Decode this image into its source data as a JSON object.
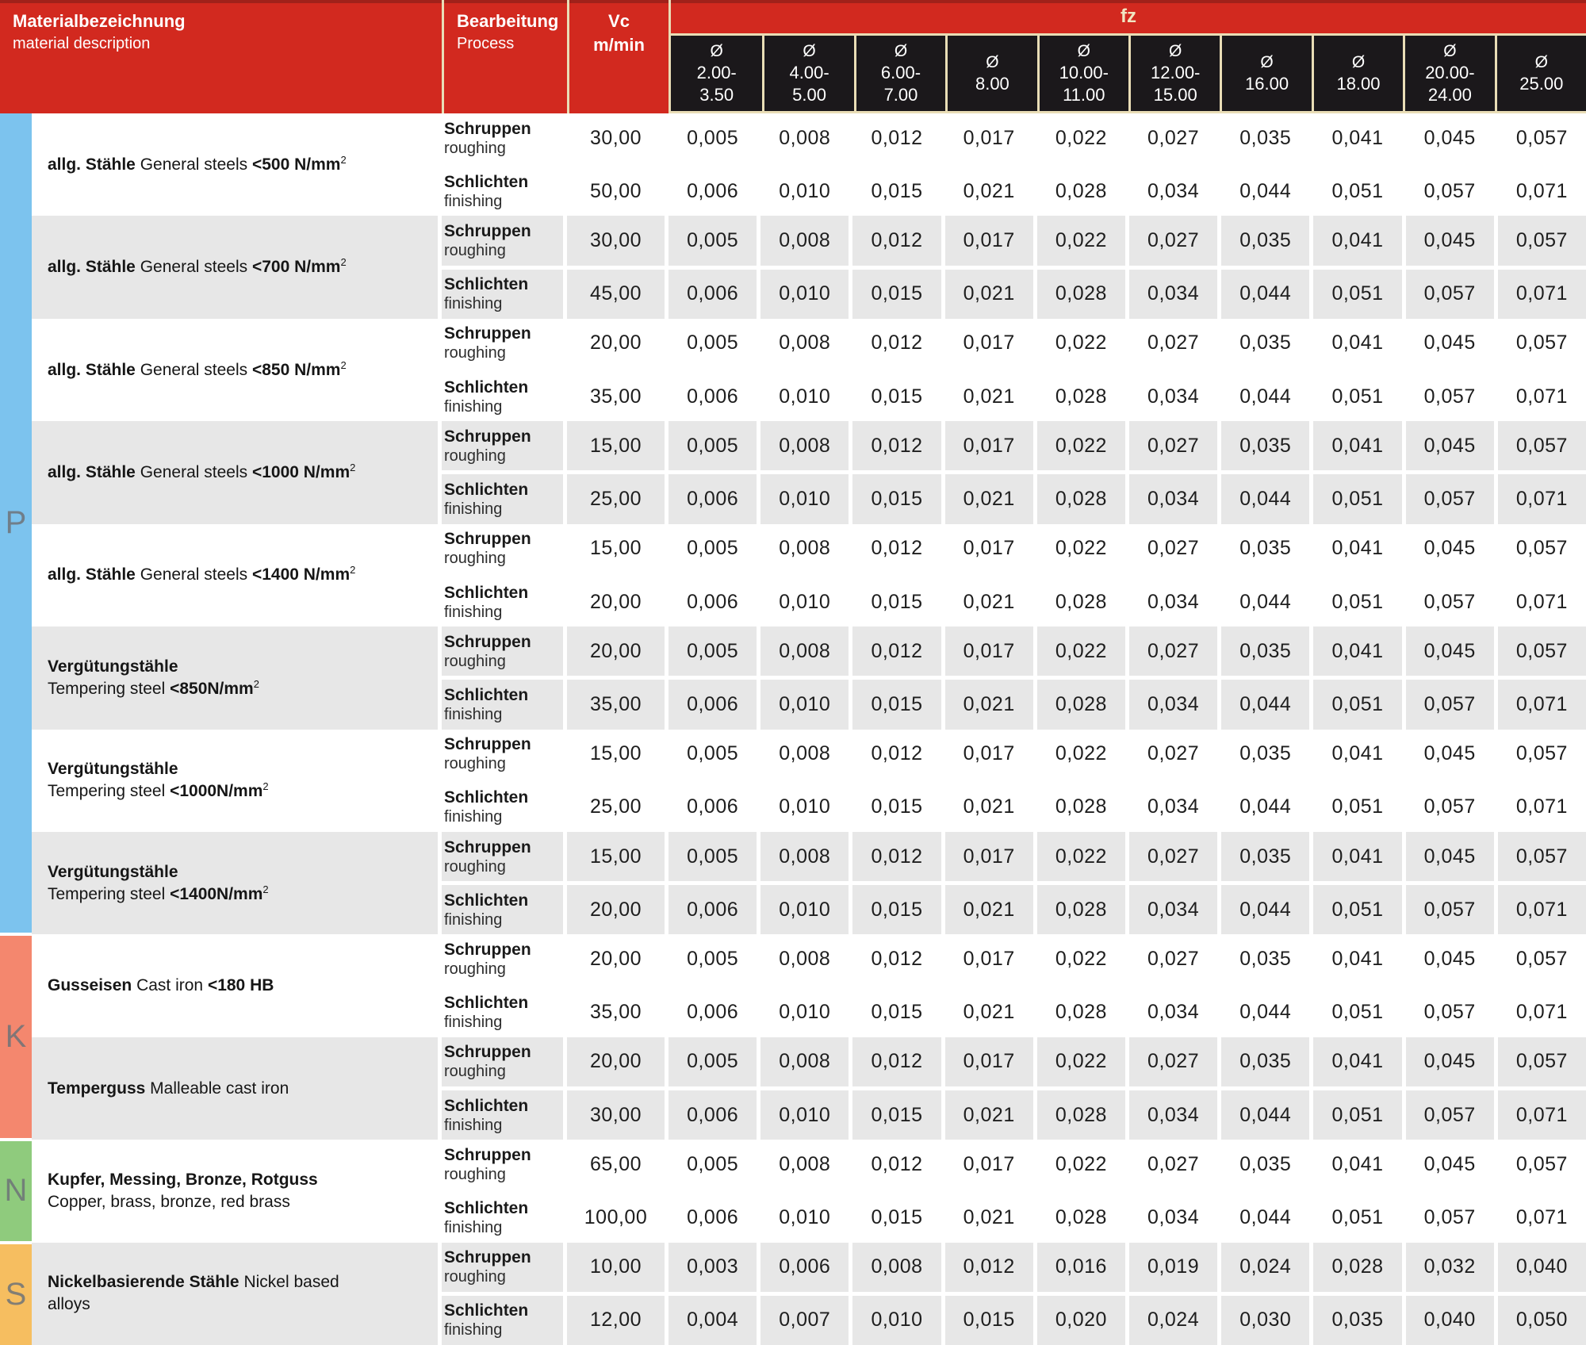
{
  "colors": {
    "header_red": "#d2291f",
    "header_red_dark": "#a0211a",
    "separator_cream": "#e9ddb6",
    "diameter_black": "#1b181b",
    "row_gray": "#e7e7e7",
    "group_p_blue": "#7cc3ee",
    "group_k_salmon": "#f4876e",
    "group_n_green": "#8fcb7d",
    "group_s_orange": "#f6be60",
    "group_letter_gray": "#6e7378"
  },
  "header": {
    "material_de": "Materialbezeichnung",
    "material_en": "material description",
    "process_de": "Bearbeitung",
    "process_en": "Process",
    "vc_line1": "Vc",
    "vc_line2": "m/min",
    "fz": "fz",
    "diameter_symbol": "Ø",
    "diameters": [
      "2.00-\n3.50",
      "4.00-\n5.00",
      "6.00-\n7.00",
      "8.00",
      "10.00-\n11.00",
      "12.00-\n15.00",
      "16.00",
      "18.00",
      "20.00-\n24.00",
      "25.00"
    ]
  },
  "process": {
    "rough_de": "Schruppen",
    "rough_en": "roughing",
    "finish_de": "Schlichten",
    "finish_en": "finishing"
  },
  "groups": [
    {
      "label": "P",
      "color": "#7cc3ee",
      "blocks": 8
    },
    {
      "label": "K",
      "color": "#f4876e",
      "blocks": 2
    },
    {
      "label": "N",
      "color": "#8fcb7d",
      "blocks": 1
    },
    {
      "label": "S",
      "color": "#f6be60",
      "blocks": 1
    }
  ],
  "blocks": [
    {
      "material": [
        [
          {
            "t": "allg. Stähle ",
            "b": true
          },
          {
            "t": "General steels ",
            "b": false
          },
          {
            "t": "<500 N/mm",
            "b": true,
            "sup": "2"
          }
        ]
      ],
      "vc": [
        "30,00",
        "50,00"
      ],
      "fz": [
        [
          "0,005",
          "0,008",
          "0,012",
          "0,017",
          "0,022",
          "0,027",
          "0,035",
          "0,041",
          "0,045",
          "0,057"
        ],
        [
          "0,006",
          "0,010",
          "0,015",
          "0,021",
          "0,028",
          "0,034",
          "0,044",
          "0,051",
          "0,057",
          "0,071"
        ]
      ]
    },
    {
      "material": [
        [
          {
            "t": "allg. Stähle ",
            "b": true
          },
          {
            "t": "General steels ",
            "b": false
          },
          {
            "t": "<700 N/mm",
            "b": true,
            "sup": "2"
          }
        ]
      ],
      "vc": [
        "30,00",
        "45,00"
      ],
      "fz": [
        [
          "0,005",
          "0,008",
          "0,012",
          "0,017",
          "0,022",
          "0,027",
          "0,035",
          "0,041",
          "0,045",
          "0,057"
        ],
        [
          "0,006",
          "0,010",
          "0,015",
          "0,021",
          "0,028",
          "0,034",
          "0,044",
          "0,051",
          "0,057",
          "0,071"
        ]
      ]
    },
    {
      "material": [
        [
          {
            "t": "allg. Stähle ",
            "b": true
          },
          {
            "t": "General steels ",
            "b": false
          },
          {
            "t": "<850 N/mm",
            "b": true,
            "sup": "2"
          }
        ]
      ],
      "vc": [
        "20,00",
        "35,00"
      ],
      "fz": [
        [
          "0,005",
          "0,008",
          "0,012",
          "0,017",
          "0,022",
          "0,027",
          "0,035",
          "0,041",
          "0,045",
          "0,057"
        ],
        [
          "0,006",
          "0,010",
          "0,015",
          "0,021",
          "0,028",
          "0,034",
          "0,044",
          "0,051",
          "0,057",
          "0,071"
        ]
      ]
    },
    {
      "material": [
        [
          {
            "t": "allg. Stähle ",
            "b": true
          },
          {
            "t": "General steels ",
            "b": false
          },
          {
            "t": "<1000 N/mm",
            "b": true,
            "sup": "2"
          }
        ]
      ],
      "vc": [
        "15,00",
        "25,00"
      ],
      "fz": [
        [
          "0,005",
          "0,008",
          "0,012",
          "0,017",
          "0,022",
          "0,027",
          "0,035",
          "0,041",
          "0,045",
          "0,057"
        ],
        [
          "0,006",
          "0,010",
          "0,015",
          "0,021",
          "0,028",
          "0,034",
          "0,044",
          "0,051",
          "0,057",
          "0,071"
        ]
      ]
    },
    {
      "material": [
        [
          {
            "t": "allg. Stähle ",
            "b": true
          },
          {
            "t": "General steels ",
            "b": false
          },
          {
            "t": "<1400 N/mm",
            "b": true,
            "sup": "2"
          }
        ]
      ],
      "vc": [
        "15,00",
        "20,00"
      ],
      "fz": [
        [
          "0,005",
          "0,008",
          "0,012",
          "0,017",
          "0,022",
          "0,027",
          "0,035",
          "0,041",
          "0,045",
          "0,057"
        ],
        [
          "0,006",
          "0,010",
          "0,015",
          "0,021",
          "0,028",
          "0,034",
          "0,044",
          "0,051",
          "0,057",
          "0,071"
        ]
      ]
    },
    {
      "material": [
        [
          {
            "t": "Vergütungstähle",
            "b": true
          }
        ],
        [
          {
            "t": "Tempering steel ",
            "b": false
          },
          {
            "t": "<850N/mm",
            "b": true,
            "sup": "2"
          }
        ]
      ],
      "vc": [
        "20,00",
        "35,00"
      ],
      "fz": [
        [
          "0,005",
          "0,008",
          "0,012",
          "0,017",
          "0,022",
          "0,027",
          "0,035",
          "0,041",
          "0,045",
          "0,057"
        ],
        [
          "0,006",
          "0,010",
          "0,015",
          "0,021",
          "0,028",
          "0,034",
          "0,044",
          "0,051",
          "0,057",
          "0,071"
        ]
      ]
    },
    {
      "material": [
        [
          {
            "t": "Vergütungstähle",
            "b": true
          }
        ],
        [
          {
            "t": "Tempering steel ",
            "b": false
          },
          {
            "t": "<1000N/mm",
            "b": true,
            "sup": "2"
          }
        ]
      ],
      "vc": [
        "15,00",
        "25,00"
      ],
      "fz": [
        [
          "0,005",
          "0,008",
          "0,012",
          "0,017",
          "0,022",
          "0,027",
          "0,035",
          "0,041",
          "0,045",
          "0,057"
        ],
        [
          "0,006",
          "0,010",
          "0,015",
          "0,021",
          "0,028",
          "0,034",
          "0,044",
          "0,051",
          "0,057",
          "0,071"
        ]
      ]
    },
    {
      "material": [
        [
          {
            "t": "Vergütungstähle",
            "b": true
          }
        ],
        [
          {
            "t": "Tempering steel ",
            "b": false
          },
          {
            "t": "<1400N/mm",
            "b": true,
            "sup": "2"
          }
        ]
      ],
      "vc": [
        "15,00",
        "20,00"
      ],
      "fz": [
        [
          "0,005",
          "0,008",
          "0,012",
          "0,017",
          "0,022",
          "0,027",
          "0,035",
          "0,041",
          "0,045",
          "0,057"
        ],
        [
          "0,006",
          "0,010",
          "0,015",
          "0,021",
          "0,028",
          "0,034",
          "0,044",
          "0,051",
          "0,057",
          "0,071"
        ]
      ]
    },
    {
      "material": [
        [
          {
            "t": "Gusseisen ",
            "b": true
          },
          {
            "t": "Cast iron ",
            "b": false
          },
          {
            "t": "<180 HB",
            "b": true
          }
        ]
      ],
      "vc": [
        "20,00",
        "35,00"
      ],
      "fz": [
        [
          "0,005",
          "0,008",
          "0,012",
          "0,017",
          "0,022",
          "0,027",
          "0,035",
          "0,041",
          "0,045",
          "0,057"
        ],
        [
          "0,006",
          "0,010",
          "0,015",
          "0,021",
          "0,028",
          "0,034",
          "0,044",
          "0,051",
          "0,057",
          "0,071"
        ]
      ]
    },
    {
      "material": [
        [
          {
            "t": "Temperguss ",
            "b": true
          },
          {
            "t": "Malleable cast iron",
            "b": false
          }
        ]
      ],
      "vc": [
        "20,00",
        "30,00"
      ],
      "fz": [
        [
          "0,005",
          "0,008",
          "0,012",
          "0,017",
          "0,022",
          "0,027",
          "0,035",
          "0,041",
          "0,045",
          "0,057"
        ],
        [
          "0,006",
          "0,010",
          "0,015",
          "0,021",
          "0,028",
          "0,034",
          "0,044",
          "0,051",
          "0,057",
          "0,071"
        ]
      ]
    },
    {
      "material": [
        [
          {
            "t": "Kupfer, Messing, Bronze, Rotguss",
            "b": true
          }
        ],
        [
          {
            "t": "Copper, brass, bronze, red brass",
            "b": false
          }
        ]
      ],
      "vc": [
        "65,00",
        "100,00"
      ],
      "fz": [
        [
          "0,005",
          "0,008",
          "0,012",
          "0,017",
          "0,022",
          "0,027",
          "0,035",
          "0,041",
          "0,045",
          "0,057"
        ],
        [
          "0,006",
          "0,010",
          "0,015",
          "0,021",
          "0,028",
          "0,034",
          "0,044",
          "0,051",
          "0,057",
          "0,071"
        ]
      ]
    },
    {
      "material": [
        [
          {
            "t": "Nickelbasierende Stähle ",
            "b": true
          },
          {
            "t": "Nickel based",
            "b": false
          }
        ],
        [
          {
            "t": "alloys",
            "b": false
          }
        ]
      ],
      "vc": [
        "10,00",
        "12,00"
      ],
      "fz": [
        [
          "0,003",
          "0,006",
          "0,008",
          "0,012",
          "0,016",
          "0,019",
          "0,024",
          "0,028",
          "0,032",
          "0,040"
        ],
        [
          "0,004",
          "0,007",
          "0,010",
          "0,015",
          "0,020",
          "0,024",
          "0,030",
          "0,035",
          "0,040",
          "0,050"
        ]
      ]
    }
  ]
}
